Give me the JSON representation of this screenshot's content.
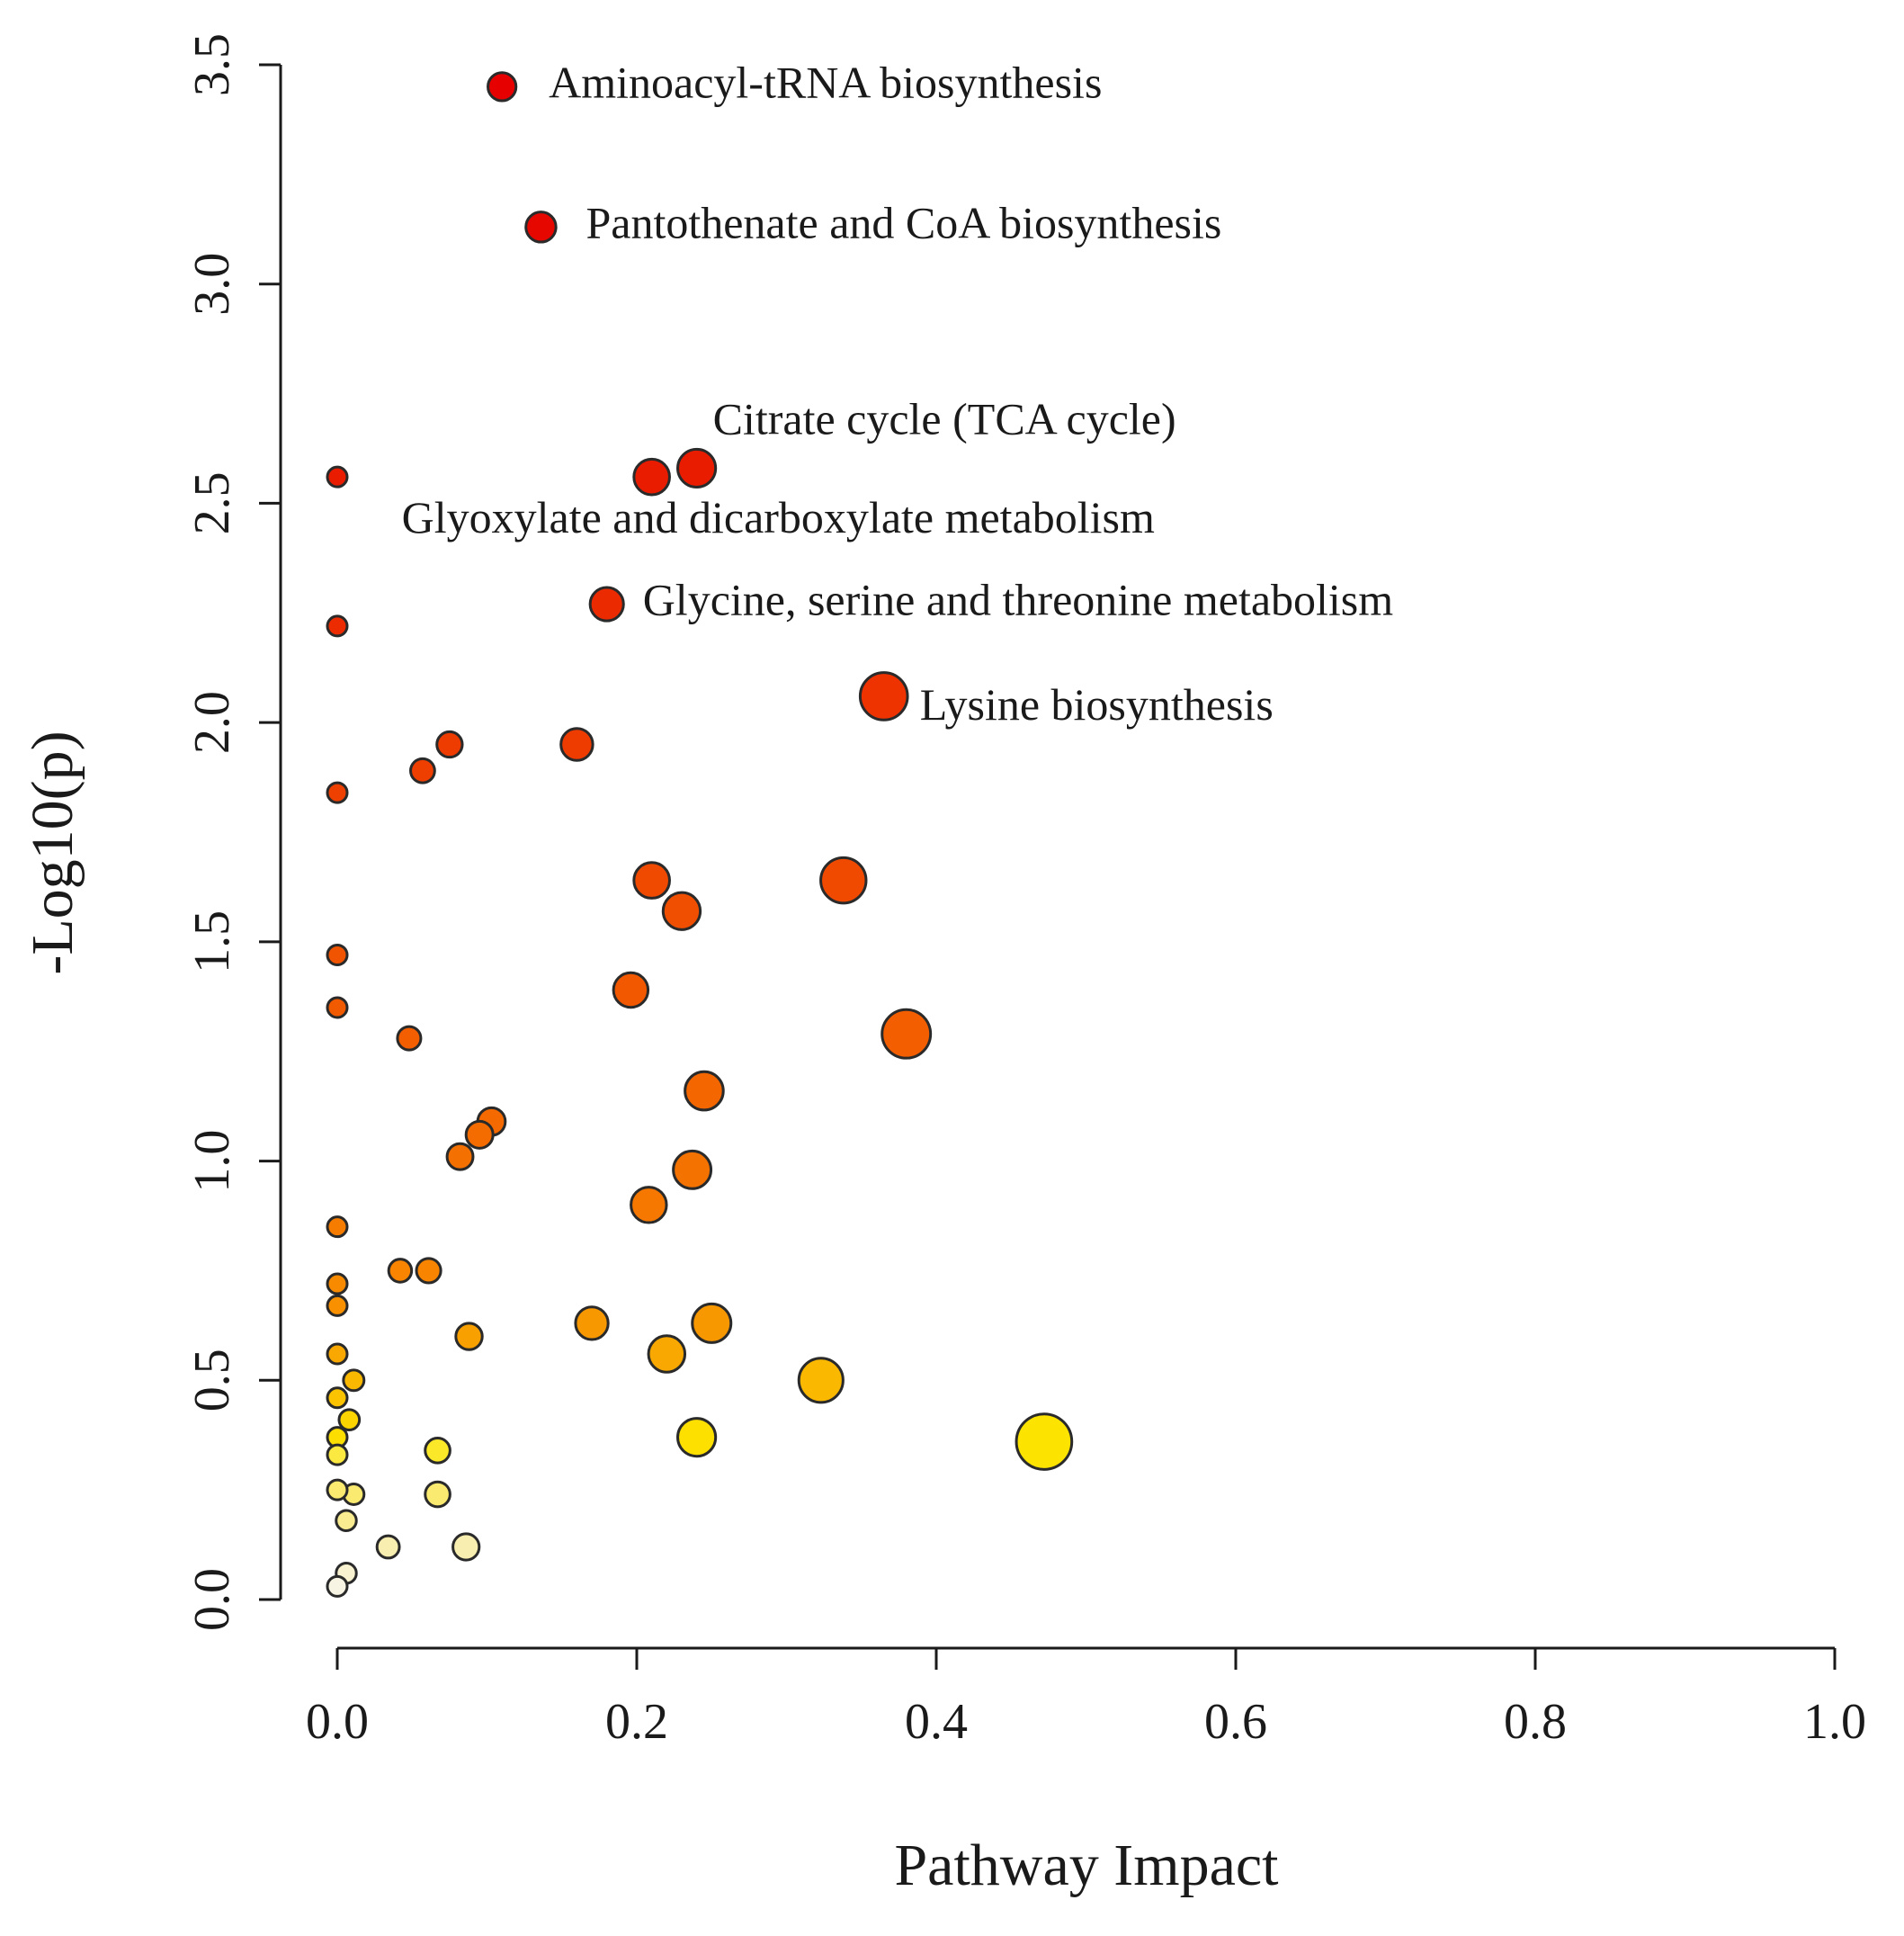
{
  "chart_data": {
    "type": "scatter",
    "title": "",
    "xlabel": "Pathway Impact",
    "ylabel": "-Log10(p)",
    "xlim": [
      0.0,
      1.0
    ],
    "ylim": [
      0.0,
      3.5
    ],
    "x_ticks": [
      "0.0",
      "0.2",
      "0.4",
      "0.6",
      "0.8",
      "1.0"
    ],
    "y_ticks": [
      "0.0",
      "0.5",
      "1.0",
      "1.5",
      "2.0",
      "2.5",
      "3.0",
      "3.5"
    ],
    "grid": false,
    "encoding": "point size ~ pathway impact; color from yellow (low -log10 p) to red (high -log10 p)",
    "points": [
      {
        "x": 0.11,
        "y": 3.45,
        "color": "#e60000"
      },
      {
        "x": 0.136,
        "y": 3.13,
        "color": "#e60800"
      },
      {
        "x": 0.21,
        "y": 2.56,
        "color": "#ea1c00"
      },
      {
        "x": 0.24,
        "y": 2.58,
        "color": "#ea1c00"
      },
      {
        "x": 0.18,
        "y": 2.27,
        "color": "#ec2a00"
      },
      {
        "x": 0.365,
        "y": 2.06,
        "color": "#ee3200"
      },
      {
        "x": 0.0,
        "y": 2.56,
        "color": "#ea1c00"
      },
      {
        "x": 0.0,
        "y": 2.22,
        "color": "#ec2c00"
      },
      {
        "x": 0.0,
        "y": 1.84,
        "color": "#ee4000"
      },
      {
        "x": 0.075,
        "y": 1.95,
        "color": "#ee3c00"
      },
      {
        "x": 0.057,
        "y": 1.89,
        "color": "#ee3e00"
      },
      {
        "x": 0.16,
        "y": 1.95,
        "color": "#ee3c00"
      },
      {
        "x": 0.21,
        "y": 1.64,
        "color": "#f04a00"
      },
      {
        "x": 0.23,
        "y": 1.57,
        "color": "#f04e00"
      },
      {
        "x": 0.338,
        "y": 1.64,
        "color": "#f04a00"
      },
      {
        "x": 0.0,
        "y": 1.47,
        "color": "#f05400"
      },
      {
        "x": 0.0,
        "y": 1.35,
        "color": "#f25a00"
      },
      {
        "x": 0.196,
        "y": 1.39,
        "color": "#f25800"
      },
      {
        "x": 0.048,
        "y": 1.28,
        "color": "#f25e00"
      },
      {
        "x": 0.38,
        "y": 1.29,
        "color": "#f25e00"
      },
      {
        "x": 0.245,
        "y": 1.16,
        "color": "#f46600"
      },
      {
        "x": 0.103,
        "y": 1.09,
        "color": "#f46a00"
      },
      {
        "x": 0.095,
        "y": 1.06,
        "color": "#f46c00"
      },
      {
        "x": 0.082,
        "y": 1.01,
        "color": "#f47000"
      },
      {
        "x": 0.237,
        "y": 0.98,
        "color": "#f47200"
      },
      {
        "x": 0.208,
        "y": 0.9,
        "color": "#f67800"
      },
      {
        "x": 0.0,
        "y": 0.85,
        "color": "#f67c00"
      },
      {
        "x": 0.042,
        "y": 0.75,
        "color": "#f88400"
      },
      {
        "x": 0.061,
        "y": 0.75,
        "color": "#f88400"
      },
      {
        "x": 0.0,
        "y": 0.72,
        "color": "#f88a00"
      },
      {
        "x": 0.0,
        "y": 0.67,
        "color": "#f89000"
      },
      {
        "x": 0.17,
        "y": 0.63,
        "color": "#f89800"
      },
      {
        "x": 0.25,
        "y": 0.63,
        "color": "#f89800"
      },
      {
        "x": 0.088,
        "y": 0.6,
        "color": "#f8a000"
      },
      {
        "x": 0.22,
        "y": 0.56,
        "color": "#f8a800"
      },
      {
        "x": 0.0,
        "y": 0.56,
        "color": "#f8a800"
      },
      {
        "x": 0.323,
        "y": 0.5,
        "color": "#fab800"
      },
      {
        "x": 0.011,
        "y": 0.5,
        "color": "#fab800"
      },
      {
        "x": 0.0,
        "y": 0.46,
        "color": "#fcc400"
      },
      {
        "x": 0.008,
        "y": 0.41,
        "color": "#fcd400"
      },
      {
        "x": 0.0,
        "y": 0.37,
        "color": "#fcde00"
      },
      {
        "x": 0.24,
        "y": 0.37,
        "color": "#fde000"
      },
      {
        "x": 0.472,
        "y": 0.36,
        "color": "#fde400"
      },
      {
        "x": 0.067,
        "y": 0.34,
        "color": "#fbe828"
      },
      {
        "x": 0.0,
        "y": 0.33,
        "color": "#fbe840"
      },
      {
        "x": 0.0,
        "y": 0.25,
        "color": "#faea70"
      },
      {
        "x": 0.011,
        "y": 0.24,
        "color": "#faea70"
      },
      {
        "x": 0.067,
        "y": 0.24,
        "color": "#faea70"
      },
      {
        "x": 0.006,
        "y": 0.18,
        "color": "#f9ec90"
      },
      {
        "x": 0.034,
        "y": 0.12,
        "color": "#f8eeb0"
      },
      {
        "x": 0.086,
        "y": 0.12,
        "color": "#f8eeb0"
      },
      {
        "x": 0.006,
        "y": 0.06,
        "color": "#f8f2d0"
      },
      {
        "x": 0.0,
        "y": 0.03,
        "color": "#f8f4e4"
      }
    ],
    "annotations": [
      {
        "text": "Aminoacyl-tRNA biosynthesis",
        "x": 0.11,
        "y": 3.45
      },
      {
        "text": "Pantothenate and CoA biosynthesis",
        "x": 0.136,
        "y": 3.13
      },
      {
        "text": "Citrate cycle (TCA cycle)",
        "x": 0.24,
        "y": 2.58
      },
      {
        "text": "Glyoxylate and dicarboxylate metabolism",
        "x": 0.21,
        "y": 2.56
      },
      {
        "text": "Glycine, serine and threonine metabolism",
        "x": 0.18,
        "y": 2.27
      },
      {
        "text": "Lysine biosynthesis",
        "x": 0.365,
        "y": 2.06
      }
    ]
  }
}
